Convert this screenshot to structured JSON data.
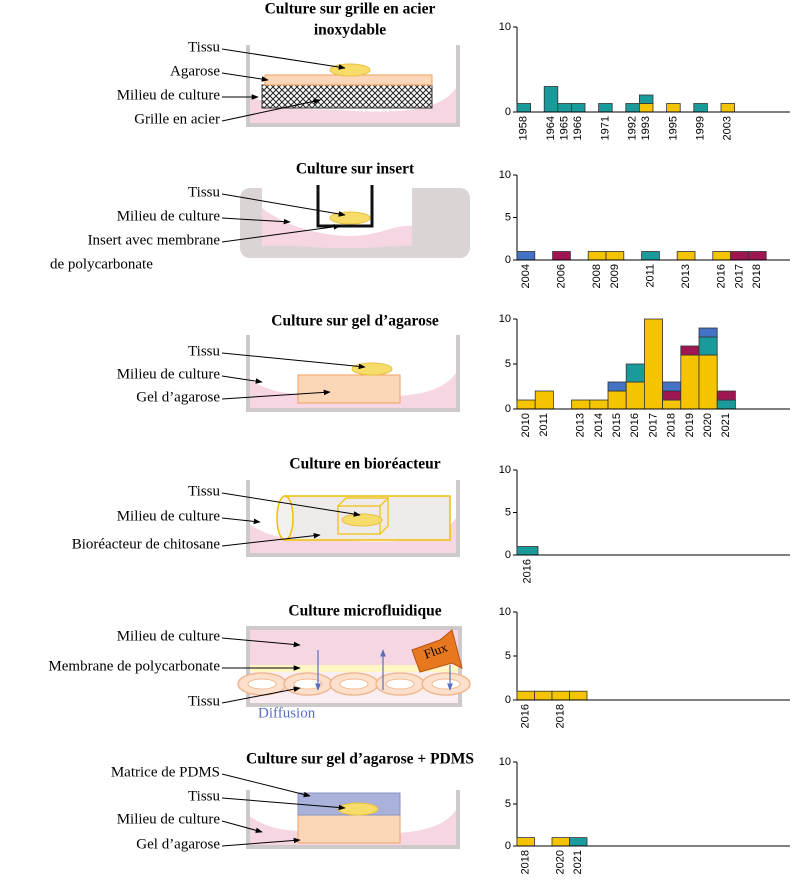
{
  "panels": [
    {
      "title": [
        "Culture sur grille en acier",
        "inoxydable"
      ],
      "labels": [
        "Tissu",
        "Agarose",
        "Milieu de culture",
        "Grille en acier"
      ]
    },
    {
      "title": [
        "Culture sur insert"
      ],
      "labels": [
        "Tissu",
        "Milieu de culture",
        "Insert avec membrane",
        "de polycarbonate"
      ]
    },
    {
      "title": [
        "Culture sur gel d’agarose"
      ],
      "labels": [
        "Tissu",
        "Milieu de culture",
        "Gel d’agarose"
      ]
    },
    {
      "title": [
        "Culture en bioréacteur"
      ],
      "labels": [
        "Tissu",
        "Milieu de culture",
        "Bioréacteur de chitosane"
      ]
    },
    {
      "title": [
        "Culture microfluidique"
      ],
      "labels": [
        "Milieu de culture",
        "Membrane de polycarbonate",
        "Tissu",
        "Diffusion",
        "Flux"
      ]
    },
    {
      "title": [
        "Culture sur gel d’agarose + PDMS"
      ],
      "labels": [
        "Matrice de PDMS",
        "Tissu",
        "Milieu de culture",
        "Gel d’agarose"
      ]
    }
  ],
  "chart_data": [
    {
      "type": "bar",
      "stacked": true,
      "ylim": [
        0,
        10
      ],
      "yticks": [
        0,
        10
      ],
      "categories": [
        "1958",
        null,
        "1964",
        "1965",
        "1966",
        null,
        "1971",
        null,
        "1992",
        "1993",
        null,
        "1995",
        null,
        "1999",
        null,
        "2003"
      ],
      "series": [
        {
          "color": "#f5c400",
          "values": [
            0,
            null,
            0,
            0,
            0,
            null,
            0,
            null,
            0,
            1,
            null,
            1,
            null,
            0,
            null,
            1
          ]
        },
        {
          "color": "#1b9a9c",
          "values": [
            1,
            null,
            3,
            1,
            1,
            null,
            1,
            null,
            1,
            1,
            null,
            0,
            null,
            1,
            null,
            0
          ]
        }
      ]
    },
    {
      "type": "bar",
      "stacked": true,
      "ylim": [
        0,
        10
      ],
      "yticks": [
        0,
        5,
        10
      ],
      "categories": [
        "2004",
        null,
        "2006",
        null,
        "2008",
        "2009",
        null,
        "2011",
        null,
        "2013",
        null,
        "2016",
        "2017",
        "2018"
      ],
      "series": [
        {
          "color": "#f5c400",
          "values": [
            0,
            null,
            0,
            null,
            1,
            1,
            null,
            0,
            null,
            1,
            null,
            1,
            0,
            0
          ]
        },
        {
          "color": "#1b9a9c",
          "values": [
            0,
            null,
            0,
            null,
            0,
            0,
            null,
            1,
            null,
            0,
            null,
            0,
            0,
            0
          ]
        },
        {
          "color": "#9e1652",
          "values": [
            0,
            null,
            1,
            null,
            0,
            0,
            null,
            0,
            null,
            0,
            null,
            0,
            1,
            1
          ]
        },
        {
          "color": "#4472c4",
          "values": [
            1,
            null,
            0,
            null,
            0,
            0,
            null,
            0,
            null,
            0,
            null,
            0,
            0,
            0
          ]
        }
      ]
    },
    {
      "type": "bar",
      "stacked": true,
      "ylim": [
        0,
        10
      ],
      "yticks": [
        0,
        5,
        10
      ],
      "categories": [
        "2010",
        "2011",
        null,
        "2013",
        "2014",
        "2015",
        "2016",
        "2017",
        "2018",
        "2019",
        "2020",
        "2021"
      ],
      "series": [
        {
          "color": "#f5c400",
          "values": [
            1,
            2,
            null,
            1,
            1,
            2,
            3,
            10,
            1,
            6,
            6,
            0
          ]
        },
        {
          "color": "#1b9a9c",
          "values": [
            0,
            0,
            null,
            0,
            0,
            0,
            2,
            0,
            0,
            0,
            2,
            1
          ]
        },
        {
          "color": "#9e1652",
          "values": [
            0,
            0,
            null,
            0,
            0,
            0,
            0,
            0,
            1,
            1,
            0,
            1
          ]
        },
        {
          "color": "#4472c4",
          "values": [
            0,
            0,
            null,
            0,
            0,
            1,
            0,
            0,
            1,
            0,
            1,
            0
          ]
        }
      ]
    },
    {
      "type": "bar",
      "stacked": true,
      "ylim": [
        0,
        10
      ],
      "yticks": [
        0,
        5,
        10
      ],
      "categories": [
        "2016"
      ],
      "series": [
        {
          "color": "#1b9a9c",
          "values": [
            1
          ]
        }
      ]
    },
    {
      "type": "bar",
      "stacked": true,
      "ylim": [
        0,
        10
      ],
      "yticks": [
        0,
        5,
        10
      ],
      "categories": [
        "2016",
        null,
        "2018",
        null
      ],
      "series": [
        {
          "color": "#f5c400",
          "values": [
            1,
            1,
            1,
            1
          ]
        }
      ]
    },
    {
      "type": "bar",
      "stacked": true,
      "ylim": [
        0,
        10
      ],
      "yticks": [
        0,
        5,
        10
      ],
      "categories": [
        "2018",
        null,
        "2020",
        "2021"
      ],
      "series": [
        {
          "color": "#f5c400",
          "values": [
            1,
            null,
            1,
            0
          ]
        },
        {
          "color": "#1b9a9c",
          "values": [
            0,
            null,
            0,
            1
          ]
        }
      ]
    }
  ]
}
